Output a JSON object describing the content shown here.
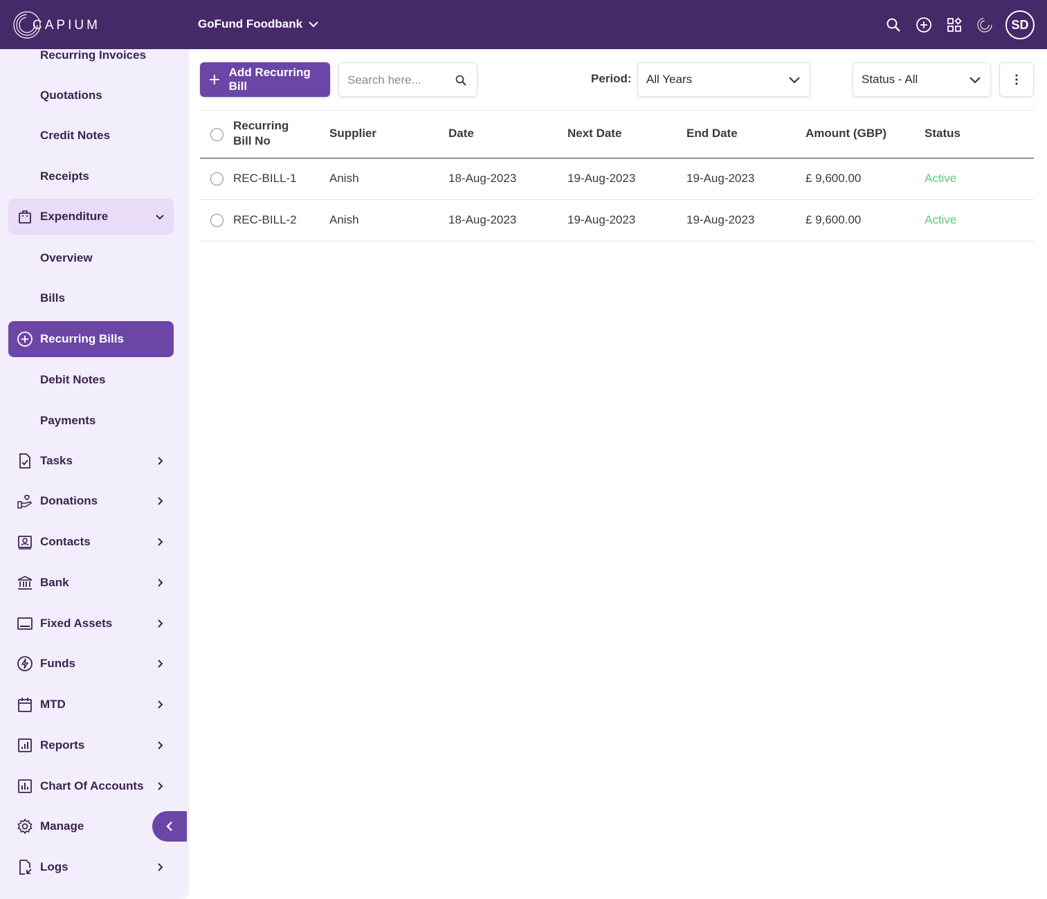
{
  "app": {
    "logo_text": "CAPIUM",
    "organization": "GoFund Foodbank",
    "avatar_initials": "SD",
    "top_icons": [
      "search-icon",
      "add-circle-icon",
      "apps-grid-icon",
      "capium-c-icon"
    ]
  },
  "sidebar": {
    "items": [
      {
        "label": "Recurring Invoices",
        "icon": "",
        "type": "sub"
      },
      {
        "label": "Quotations",
        "icon": "",
        "type": "sub"
      },
      {
        "label": "Credit Notes",
        "icon": "",
        "type": "sub"
      },
      {
        "label": "Receipts",
        "icon": "",
        "type": "sub"
      },
      {
        "label": "Expenditure",
        "icon": "shopping-bag-icon",
        "type": "group-open"
      },
      {
        "label": "Overview",
        "icon": "",
        "type": "sub"
      },
      {
        "label": "Bills",
        "icon": "",
        "type": "sub"
      },
      {
        "label": "Recurring Bills",
        "icon": "add-circle-icon",
        "type": "active"
      },
      {
        "label": "Debit Notes",
        "icon": "",
        "type": "sub"
      },
      {
        "label": "Payments",
        "icon": "",
        "type": "sub"
      },
      {
        "label": "Tasks",
        "icon": "task-icon",
        "type": "group"
      },
      {
        "label": "Donations",
        "icon": "donation-hand-icon",
        "type": "group"
      },
      {
        "label": "Contacts",
        "icon": "contacts-icon",
        "type": "group"
      },
      {
        "label": "Bank",
        "icon": "bank-icon",
        "type": "group"
      },
      {
        "label": "Fixed Assets",
        "icon": "monitor-icon",
        "type": "group"
      },
      {
        "label": "Funds",
        "icon": "funds-icon",
        "type": "group"
      },
      {
        "label": "MTD",
        "icon": "calendar-icon",
        "type": "group"
      },
      {
        "label": "Reports",
        "icon": "reports-icon",
        "type": "group"
      },
      {
        "label": "Chart Of Accounts",
        "icon": "bar-chart-icon",
        "type": "group"
      },
      {
        "label": "Manage",
        "icon": "gear-icon",
        "type": "plain"
      },
      {
        "label": "Logs",
        "icon": "logs-icon",
        "type": "group"
      }
    ]
  },
  "toolbar": {
    "add_label": "Add Recurring Bill",
    "search_placeholder": "Search here...",
    "period_label": "Period:",
    "period_value": "All Years",
    "status_value": "Status - All"
  },
  "table": {
    "headers": {
      "bill_no": "Recurring Bill No",
      "supplier": "Supplier",
      "date": "Date",
      "next_date": "Next Date",
      "end_date": "End Date",
      "amount": "Amount (GBP)",
      "status": "Status"
    },
    "rows": [
      {
        "bill_no": "REC-BILL-1",
        "supplier": "Anish",
        "date": "18-Aug-2023",
        "next_date": "19-Aug-2023",
        "end_date": "19-Aug-2023",
        "amount": "£ 9,600.00",
        "status": "Active"
      },
      {
        "bill_no": "REC-BILL-2",
        "supplier": "Anish",
        "date": "18-Aug-2023",
        "next_date": "19-Aug-2023",
        "end_date": "19-Aug-2023",
        "amount": "£ 9,600.00",
        "status": "Active"
      }
    ]
  },
  "colors": {
    "topbar": "#462969",
    "accent": "#6b46a6",
    "sidebar_bg": "#f3eefb",
    "status_active": "#5cc97b"
  }
}
